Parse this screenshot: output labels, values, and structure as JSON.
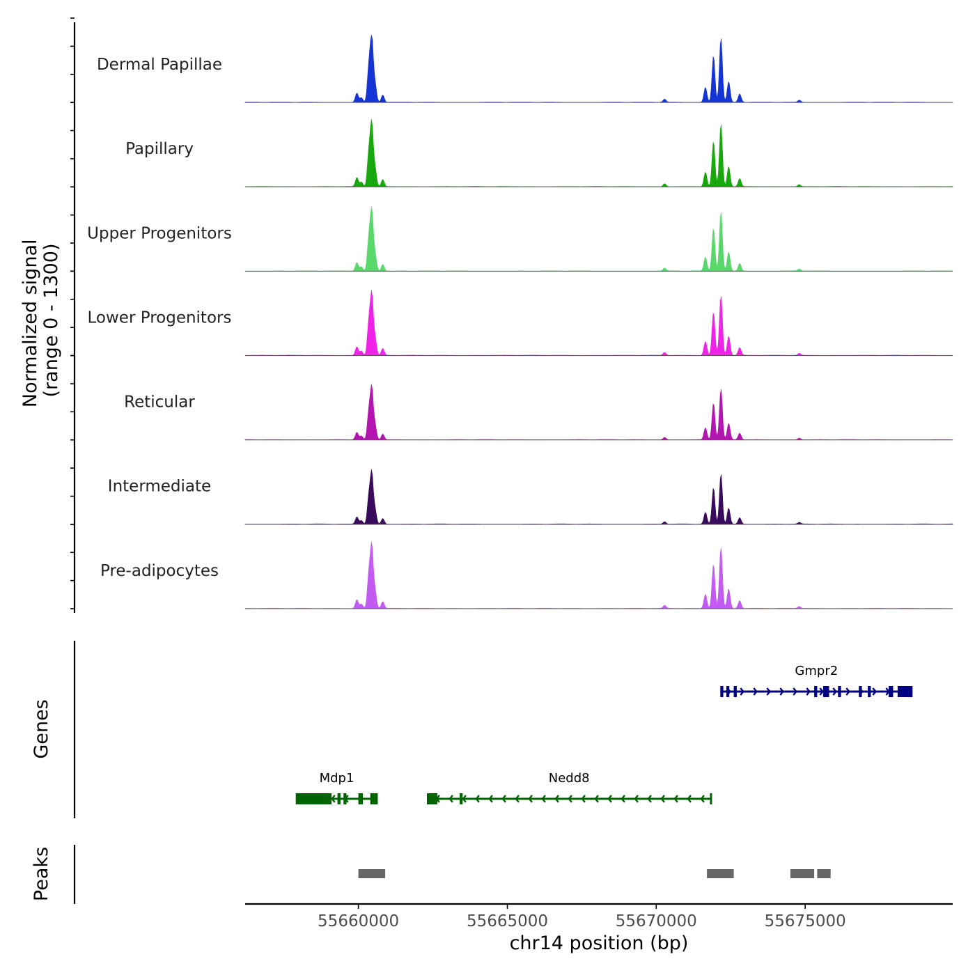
{
  "chart_data": {
    "type": "area",
    "region": {
      "chromosome": "chr14",
      "start": 55656200,
      "end": 55679950
    },
    "ylabel_line1": "Normalized signal",
    "ylabel_line2": "(range 0 - 1300)",
    "ylim": [
      0,
      1300
    ],
    "xlabel": "chr14 position (bp)",
    "x_ticks": [
      {
        "value": 55660000,
        "label": "55660000"
      },
      {
        "value": 55665000,
        "label": "55665000"
      },
      {
        "value": 55670000,
        "label": "55670000"
      },
      {
        "value": 55675000,
        "label": "55675000"
      }
    ],
    "tracks": [
      {
        "name": "Dermal Papillae",
        "color": "#1534d6",
        "scale": 1.0
      },
      {
        "name": "Papillary",
        "color": "#18a80e",
        "scale": 0.97
      },
      {
        "name": "Upper Progenitors",
        "color": "#5ad86c",
        "scale": 0.92
      },
      {
        "name": "Lower Progenitors",
        "color": "#f022e8",
        "scale": 0.93
      },
      {
        "name": "Reticular",
        "color": "#b414b0",
        "scale": 0.79
      },
      {
        "name": "Intermediate",
        "color": "#3a0a5e",
        "scale": 0.78
      },
      {
        "name": "Pre-adipocytes",
        "color": "#c35af2",
        "scale": 0.95
      }
    ],
    "peaks_profile": [
      {
        "x": 55659950,
        "y": 180
      },
      {
        "x": 55660100,
        "y": 90
      },
      {
        "x": 55660350,
        "y": 650
      },
      {
        "x": 55660450,
        "y": 1230
      },
      {
        "x": 55660560,
        "y": 350
      },
      {
        "x": 55660820,
        "y": 140
      },
      {
        "x": 55670280,
        "y": 60
      },
      {
        "x": 55671650,
        "y": 290
      },
      {
        "x": 55671920,
        "y": 900
      },
      {
        "x": 55672170,
        "y": 1250
      },
      {
        "x": 55672430,
        "y": 400
      },
      {
        "x": 55672800,
        "y": 160
      },
      {
        "x": 55674800,
        "y": 40
      }
    ],
    "genes_label": "Genes",
    "genes": [
      {
        "name": "Gmpr2",
        "strand": "+",
        "start": 55672150,
        "end": 55678600,
        "color": "#000080",
        "row": 1,
        "exons": [
          [
            55672150,
            55672250
          ],
          [
            55672350,
            55672450
          ],
          [
            55672600,
            55672700
          ],
          [
            55675300,
            55675400
          ],
          [
            55675600,
            55675800
          ],
          [
            55676100,
            55676200
          ],
          [
            55676800,
            55676900
          ],
          [
            55677100,
            55677200
          ],
          [
            55677800,
            55677950
          ],
          [
            55678100,
            55678600
          ]
        ]
      },
      {
        "name": "Mdp1",
        "strand": "-",
        "start": 55657900,
        "end": 55660650,
        "color": "#006400",
        "row": 2,
        "exons": [
          [
            55657900,
            55659100
          ],
          [
            55659300,
            55659400
          ],
          [
            55659500,
            55659600
          ],
          [
            55660000,
            55660150
          ],
          [
            55660400,
            55660650
          ]
        ]
      },
      {
        "name": "Nedd8",
        "strand": "-",
        "start": 55662300,
        "end": 55671850,
        "color": "#006400",
        "row": 2,
        "exons": [
          [
            55662300,
            55662650
          ],
          [
            55663400,
            55663500
          ],
          [
            55671800,
            55671850
          ]
        ]
      }
    ],
    "peaks_label": "Peaks",
    "peaks": [
      {
        "start": 55660000,
        "end": 55660900
      },
      {
        "start": 55671700,
        "end": 55672600
      },
      {
        "start": 55674500,
        "end": 55675300
      },
      {
        "start": 55675400,
        "end": 55675850
      }
    ]
  }
}
